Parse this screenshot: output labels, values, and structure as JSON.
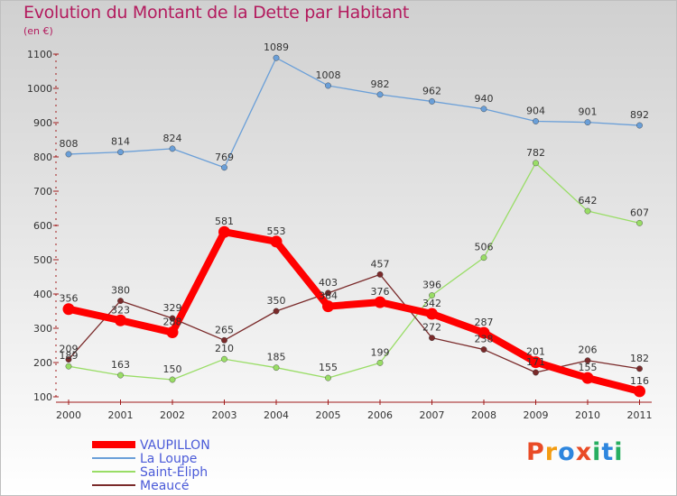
{
  "header": {
    "title": "Evolution du Montant de la Dette par Habitant",
    "subtitle": "(en €)"
  },
  "logo": {
    "letters": [
      "P",
      "r",
      "o",
      "x",
      "i",
      "t",
      "i"
    ],
    "colors": [
      "#e94b26",
      "#f39c12",
      "#2e86de",
      "#e94b26",
      "#27ae60",
      "#2e86de",
      "#27ae60"
    ]
  },
  "chart_data": {
    "type": "line",
    "title": "Evolution du Montant de la Dette par Habitant",
    "subtitle": "(en €)",
    "xlabel": "",
    "ylabel": "",
    "categories": [
      "2000",
      "2001",
      "2002",
      "2003",
      "2004",
      "2005",
      "2006",
      "2007",
      "2008",
      "2009",
      "2010",
      "2011"
    ],
    "ylim": [
      100,
      1100
    ],
    "yticks": [
      "100",
      "200",
      "300",
      "400",
      "500",
      "600",
      "700",
      "800",
      "900",
      "1000",
      "1100"
    ],
    "grid": false,
    "legend_position": "bottom-left",
    "series": [
      {
        "name": "VAUPILLON",
        "color": "#ff0000",
        "emphasis": "bold",
        "values": [
          356,
          323,
          288,
          581,
          553,
          364,
          376,
          342,
          287,
          201,
          155,
          116
        ],
        "labels": [
          "356",
          "323",
          "288",
          "581",
          "553",
          "364",
          "376",
          "342",
          "287",
          "201",
          "155",
          "116"
        ]
      },
      {
        "name": "La Loupe",
        "color": "#6a9fd8",
        "emphasis": "normal",
        "values": [
          808,
          814,
          824,
          769,
          1089,
          1008,
          982,
          962,
          940,
          904,
          901,
          892
        ],
        "labels": [
          "808",
          "814",
          "824",
          "769",
          "1089",
          "1008",
          "982",
          "962",
          "940",
          "904",
          "901",
          "892"
        ]
      },
      {
        "name": "Saint-Éliph",
        "color": "#99dd66",
        "emphasis": "normal",
        "values": [
          189,
          163,
          150,
          210,
          185,
          155,
          199,
          396,
          506,
          782,
          642,
          607
        ],
        "labels": [
          "189",
          "163",
          "150",
          "210",
          "185",
          "155",
          "199",
          "396",
          "506",
          "782",
          "642",
          "607"
        ]
      },
      {
        "name": "Meaucé",
        "color": "#7a2a2a",
        "emphasis": "normal",
        "values": [
          209,
          380,
          329,
          265,
          350,
          403,
          457,
          272,
          238,
          171,
          206,
          182
        ],
        "labels": [
          "209",
          "380",
          "329",
          "265",
          "350",
          "403",
          "457",
          "272",
          "238",
          "171",
          "206",
          "182"
        ]
      }
    ]
  }
}
